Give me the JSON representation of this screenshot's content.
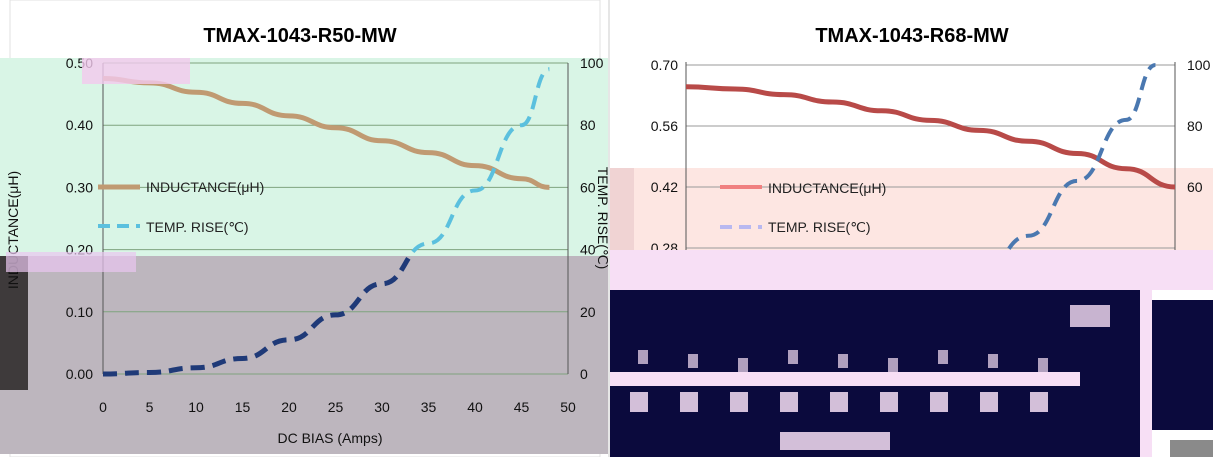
{
  "charts": [
    {
      "id": "left",
      "title": "TMAX-1043-R50-MW",
      "xlabel": "DC BIAS  (Amps)",
      "ylabel": "INDUCTANCE(μH)",
      "y2label": "TEMP. RISE(℃)",
      "xticks": [
        "0",
        "5",
        "10",
        "15",
        "20",
        "25",
        "30",
        "35",
        "40",
        "45",
        "50"
      ],
      "yticks": [
        "0.00",
        "0.10",
        "0.20",
        "0.30",
        "0.40",
        "0.50"
      ],
      "y2ticks": [
        "0",
        "20",
        "40",
        "60",
        "80",
        "100"
      ],
      "legend": [
        "INDUCTANCE(μH)",
        "TEMP. RISE(℃)"
      ]
    },
    {
      "id": "right",
      "title": "TMAX-1043-R68-MW",
      "yticks_visible": [
        "0.70",
        "0.56",
        "0.42",
        "0.28"
      ],
      "y2ticks_visible": [
        "100",
        "80",
        "60"
      ],
      "legend": [
        "INDUCTANCE(μH)",
        "TEMP. RISE(℃)"
      ]
    }
  ],
  "chart_data": [
    {
      "type": "line",
      "title": "TMAX-1043-R50-MW",
      "xlabel": "DC BIAS  (Amps)",
      "ylabel": "INDUCTANCE(μH)",
      "y2label": "TEMP. RISE(℃)",
      "xlim": [
        0,
        50
      ],
      "ylim": [
        0,
        0.5
      ],
      "y2lim": [
        0,
        100
      ],
      "grid": true,
      "legend_position": "left",
      "series": [
        {
          "name": "INDUCTANCE(μH)",
          "axis": "left",
          "color": "#c09a72",
          "style": "solid",
          "x": [
            0,
            5,
            10,
            15,
            20,
            25,
            30,
            35,
            40,
            45,
            48
          ],
          "y": [
            0.475,
            0.468,
            0.453,
            0.435,
            0.415,
            0.396,
            0.375,
            0.356,
            0.335,
            0.314,
            0.3
          ]
        },
        {
          "name": "TEMP. RISE(℃)",
          "axis": "right",
          "color": "#5bc0de",
          "style": "dashed",
          "x": [
            0,
            5,
            10,
            15,
            20,
            25,
            30,
            35,
            40,
            45,
            48
          ],
          "y": [
            0,
            0.5,
            2,
            5,
            11,
            19,
            29,
            42,
            59,
            80,
            98
          ]
        }
      ]
    },
    {
      "type": "line",
      "title": "TMAX-1043-R68-MW",
      "ylim": [
        0,
        0.7
      ],
      "y2lim": [
        0,
        100
      ],
      "grid": true,
      "legend_position": "left",
      "series": [
        {
          "name": "INDUCTANCE(μH)",
          "axis": "left",
          "color": "#b84a48",
          "style": "solid",
          "x": [
            0,
            5,
            10,
            15,
            20,
            25,
            30,
            35,
            40,
            45,
            50
          ],
          "y": [
            0.65,
            0.645,
            0.632,
            0.615,
            0.595,
            0.573,
            0.55,
            0.525,
            0.497,
            0.462,
            0.42
          ]
        },
        {
          "name": "TEMP. RISE(℃)",
          "axis": "right",
          "color": "#4a78b0",
          "style": "dashed",
          "x": [
            30,
            35,
            40,
            45,
            48
          ],
          "y": [
            30,
            44,
            62,
            82,
            100
          ]
        }
      ]
    }
  ],
  "colors": {
    "plot_bg_left": "#d9f5e6",
    "plot_bg_left_lower": "#bdb6be",
    "plot_bg_right_lower": "#fde6e2",
    "glitch_dark": "#0b0a3d",
    "glitch_pink": "#f7dff5"
  }
}
